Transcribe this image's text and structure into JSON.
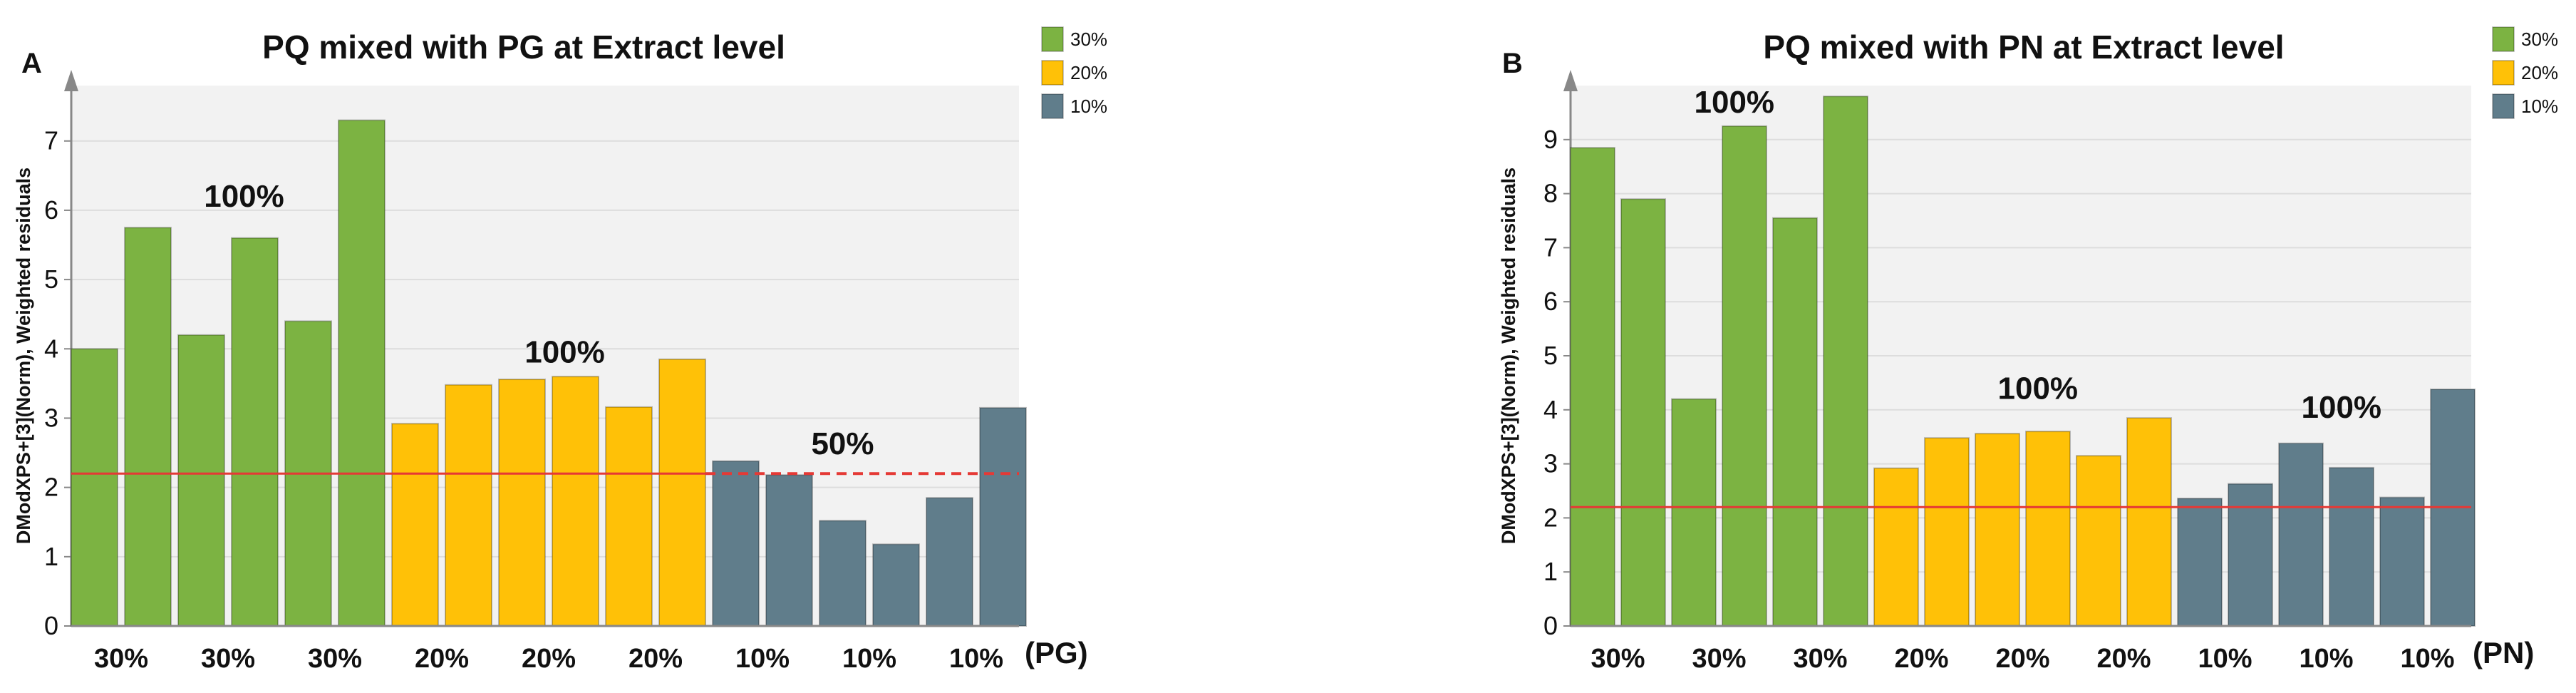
{
  "colors": {
    "green": "#7cb342",
    "yellow": "#ffc107",
    "slate": "#607d8b",
    "threshold": "#e53935",
    "plot_bg": "#f2f2f2",
    "grid": "#dddddd",
    "axis": "#888888",
    "text": "#111111"
  },
  "chart_data": [
    {
      "type": "bar",
      "panel_label": "A",
      "title": "PQ mixed with PG at Extract level",
      "ylabel": "DModXPS+[3](Norm), Weighted residuals",
      "xlabel": "(PG)",
      "ylim": [
        0,
        7.8
      ],
      "yticks": [
        0,
        1,
        2,
        3,
        4,
        5,
        6,
        7
      ],
      "threshold": 2.2,
      "threshold_dashed_from_index": 11,
      "categories": [
        "30%",
        "30%",
        "30%",
        "30%",
        "30%",
        "30%",
        "20%",
        "20%",
        "20%",
        "20%",
        "20%",
        "20%",
        "10%",
        "10%",
        "10%",
        "10%",
        "10%",
        "10%"
      ],
      "x_tick_labels": [
        "30%",
        "30%",
        "30%",
        "20%",
        "20%",
        "20%",
        "10%",
        "10%",
        "10%"
      ],
      "values": [
        4.0,
        5.75,
        4.2,
        5.6,
        4.4,
        7.3,
        2.92,
        3.48,
        3.56,
        3.6,
        3.16,
        3.85,
        2.38,
        2.18,
        1.52,
        1.18,
        1.85,
        3.15
      ],
      "groups": [
        {
          "name": "30%",
          "color_key": "green",
          "start": 0,
          "end": 5
        },
        {
          "name": "20%",
          "color_key": "yellow",
          "start": 6,
          "end": 11
        },
        {
          "name": "10%",
          "color_key": "slate",
          "start": 12,
          "end": 17
        }
      ],
      "annotations": [
        {
          "text": "100%",
          "bar_index": 2.8,
          "y": 6.05
        },
        {
          "text": "100%",
          "bar_index": 8.8,
          "y": 3.8
        },
        {
          "text": "50%",
          "bar_index": 14.0,
          "y": 2.48
        }
      ],
      "legend": {
        "position": "top-right",
        "entries": [
          {
            "label": "30%",
            "color_key": "green"
          },
          {
            "label": "20%",
            "color_key": "yellow"
          },
          {
            "label": "10%",
            "color_key": "slate"
          }
        ]
      }
    },
    {
      "type": "bar",
      "panel_label": "B",
      "title": "PQ mixed with PN at Extract level",
      "ylabel": "DModXPS+[3](Norm), Weighted residuals",
      "xlabel": "(PN)",
      "ylim": [
        0,
        10.0
      ],
      "yticks": [
        0,
        1,
        2,
        3,
        4,
        5,
        6,
        7,
        8,
        9
      ],
      "threshold": 2.2,
      "threshold_dashed_from_index": null,
      "categories": [
        "30%",
        "30%",
        "30%",
        "30%",
        "30%",
        "30%",
        "20%",
        "20%",
        "20%",
        "20%",
        "20%",
        "20%",
        "10%",
        "10%",
        "10%",
        "10%",
        "10%",
        "10%"
      ],
      "x_tick_labels": [
        "30%",
        "30%",
        "30%",
        "20%",
        "20%",
        "20%",
        "10%",
        "10%",
        "10%"
      ],
      "values": [
        8.85,
        7.9,
        4.2,
        9.25,
        7.55,
        9.8,
        2.92,
        3.48,
        3.56,
        3.6,
        3.15,
        3.85,
        2.36,
        2.63,
        3.38,
        2.93,
        2.38,
        4.38
      ],
      "groups": [
        {
          "name": "30%",
          "color_key": "green",
          "start": 0,
          "end": 5
        },
        {
          "name": "20%",
          "color_key": "yellow",
          "start": 6,
          "end": 11
        },
        {
          "name": "10%",
          "color_key": "slate",
          "start": 12,
          "end": 17
        }
      ],
      "annotations": [
        {
          "text": "100%",
          "bar_index": 2.8,
          "y": 9.5
        },
        {
          "text": "100%",
          "bar_index": 8.8,
          "y": 4.2
        },
        {
          "text": "100%",
          "bar_index": 14.8,
          "y": 3.85
        }
      ],
      "legend": {
        "position": "top-right",
        "entries": [
          {
            "label": "30%",
            "color_key": "green"
          },
          {
            "label": "20%",
            "color_key": "yellow"
          },
          {
            "label": "10%",
            "color_key": "slate"
          }
        ]
      }
    }
  ]
}
